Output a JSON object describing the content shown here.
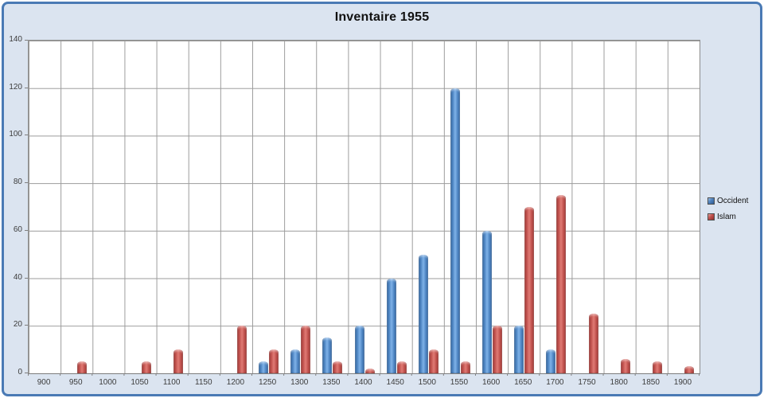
{
  "chart": {
    "title": "Inventaire 1955"
  },
  "chart_data": {
    "type": "bar",
    "title": "Inventaire 1955",
    "categories": [
      900,
      950,
      1000,
      1050,
      1100,
      1150,
      1200,
      1250,
      1300,
      1350,
      1400,
      1450,
      1500,
      1550,
      1600,
      1650,
      1700,
      1750,
      1800,
      1850,
      1900
    ],
    "series": [
      {
        "name": "Occident",
        "color": "#4f81bd",
        "values": [
          0,
          0,
          0,
          0,
          0,
          0,
          0,
          5,
          10,
          15,
          20,
          40,
          50,
          120,
          60,
          20,
          10,
          0,
          0,
          0,
          0
        ]
      },
      {
        "name": "Islam",
        "color": "#c0504d",
        "values": [
          0,
          5,
          0,
          5,
          10,
          0,
          20,
          10,
          20,
          5,
          2,
          5,
          10,
          5,
          20,
          70,
          75,
          25,
          6,
          5,
          3
        ]
      }
    ],
    "xlabel": "",
    "ylabel": "",
    "ylim": [
      0,
      140
    ],
    "ytick_step": 20,
    "yticks": [
      "0",
      "20",
      "40",
      "60",
      "80",
      "100",
      "120",
      "140"
    ],
    "grid": true,
    "legend_position": "right",
    "plot_background": "#ffffff",
    "frame_background": "#dbe4f0",
    "frame_border_color": "#4a7ab5",
    "gridline_color": "#9c9c9c"
  }
}
